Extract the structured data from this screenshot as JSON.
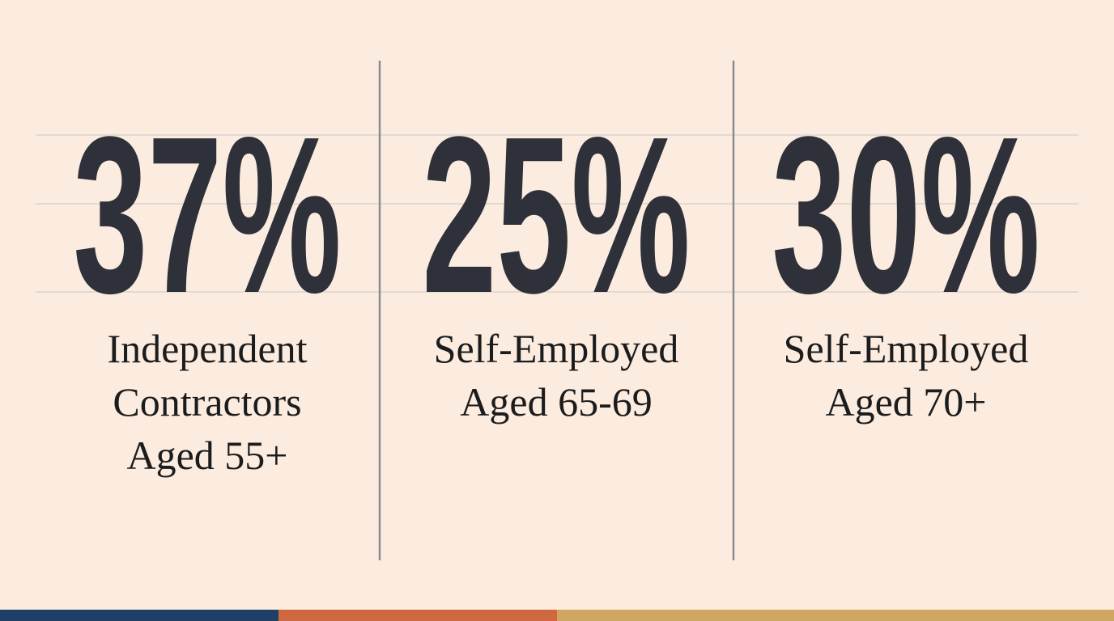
{
  "stats": [
    {
      "value": "37%",
      "label_lines": [
        "Independent",
        "Contractors",
        "Aged 55+"
      ]
    },
    {
      "value": "25%",
      "label_lines": [
        "Self-Employed",
        "Aged 65-69"
      ]
    },
    {
      "value": "30%",
      "label_lines": [
        "Self-Employed",
        "Aged 70+"
      ]
    }
  ]
}
